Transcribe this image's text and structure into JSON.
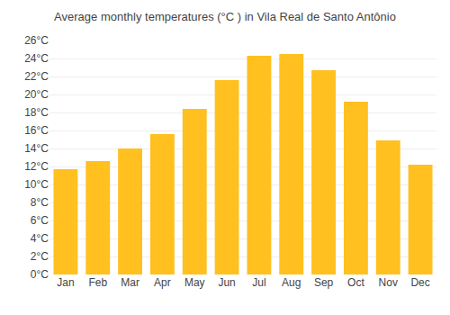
{
  "chart_data": {
    "type": "bar",
    "title": "Average monthly temperatures (°C ) in Vila Real de Santo Antônio",
    "categories": [
      "Jan",
      "Feb",
      "Mar",
      "Apr",
      "May",
      "Jun",
      "Jul",
      "Aug",
      "Sep",
      "Oct",
      "Nov",
      "Dec"
    ],
    "values": [
      11.7,
      12.6,
      14.0,
      15.6,
      18.4,
      21.6,
      24.3,
      24.5,
      22.7,
      19.2,
      14.9,
      12.2
    ],
    "color": "#FFC020",
    "ylim": [
      0,
      26
    ],
    "yticks": [
      {
        "value": 0,
        "label": "0°C"
      },
      {
        "value": 2,
        "label": "2°C"
      },
      {
        "value": 4,
        "label": "4°C"
      },
      {
        "value": 6,
        "label": "6°C"
      },
      {
        "value": 8,
        "label": "8°C"
      },
      {
        "value": 10,
        "label": "10°C"
      },
      {
        "value": 12,
        "label": "12°C"
      },
      {
        "value": 14,
        "label": "14°C"
      },
      {
        "value": 16,
        "label": "16°C"
      },
      {
        "value": 18,
        "label": "18°C"
      },
      {
        "value": 20,
        "label": "20°C"
      },
      {
        "value": 22,
        "label": "22°C"
      },
      {
        "value": 24,
        "label": "24°C"
      },
      {
        "value": 26,
        "label": "26°C"
      }
    ],
    "grid": true
  }
}
